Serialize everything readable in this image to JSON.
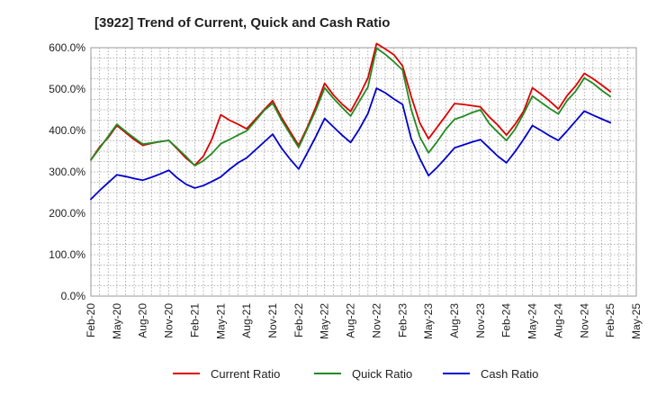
{
  "chart_data": {
    "type": "line",
    "title": "[3922]  Trend of Current, Quick and Cash Ratio",
    "xlabel": "",
    "ylabel": "",
    "ylim": [
      0,
      600
    ],
    "y_ticks": [
      "0.0%",
      "100.0%",
      "200.0%",
      "300.0%",
      "400.0%",
      "500.0%",
      "600.0%"
    ],
    "x_tick_labels": [
      "Feb-20",
      "May-20",
      "Aug-20",
      "Nov-20",
      "Feb-21",
      "May-21",
      "Aug-21",
      "Nov-21",
      "Feb-22",
      "May-22",
      "Aug-22",
      "Nov-22",
      "Feb-23",
      "May-23",
      "Aug-23",
      "Nov-23",
      "Feb-24",
      "May-24",
      "Aug-24",
      "Nov-24",
      "Feb-25",
      "May-25"
    ],
    "x": [
      "Feb-20",
      "Mar-20",
      "Apr-20",
      "May-20",
      "Jun-20",
      "Jul-20",
      "Aug-20",
      "Sep-20",
      "Oct-20",
      "Nov-20",
      "Dec-20",
      "Jan-21",
      "Feb-21",
      "Mar-21",
      "Apr-21",
      "May-21",
      "Jun-21",
      "Jul-21",
      "Aug-21",
      "Sep-21",
      "Oct-21",
      "Nov-21",
      "Dec-21",
      "Jan-22",
      "Feb-22",
      "Mar-22",
      "Apr-22",
      "May-22",
      "Jun-22",
      "Jul-22",
      "Aug-22",
      "Sep-22",
      "Oct-22",
      "Nov-22",
      "Dec-22",
      "Jan-23",
      "Feb-23",
      "Mar-23",
      "Apr-23",
      "May-23",
      "Jun-23",
      "Jul-23",
      "Aug-23",
      "Sep-23",
      "Oct-23",
      "Nov-23",
      "Dec-23",
      "Jan-24",
      "Feb-24",
      "Mar-24",
      "Apr-24",
      "May-24",
      "Jun-24",
      "Jul-24",
      "Aug-24",
      "Sep-24",
      "Oct-24",
      "Nov-24",
      "Dec-24",
      "Jan-25",
      "Feb-25"
    ],
    "grid": true,
    "legend_position": "bottom",
    "series": [
      {
        "name": "Current Ratio",
        "color": "#dd0000",
        "values": [
          329,
          360,
          383,
          412,
          395,
          378,
          364,
          369,
          373,
          376,
          355,
          333,
          316,
          338,
          380,
          438,
          425,
          415,
          404,
          427,
          450,
          472,
          432,
          398,
          364,
          408,
          458,
          514,
          486,
          464,
          446,
          484,
          527,
          610,
          597,
          583,
          556,
          482,
          418,
          380,
          408,
          436,
          465,
          463,
          460,
          457,
          433,
          413,
          389,
          415,
          447,
          503,
          488,
          471,
          452,
          484,
          508,
          538,
          525,
          510,
          494
        ]
      },
      {
        "name": "Quick Ratio",
        "color": "#228b22",
        "values": [
          329,
          357,
          386,
          415,
          398,
          382,
          367,
          370,
          373,
          376,
          357,
          337,
          315,
          327,
          345,
          368,
          378,
          389,
          399,
          423,
          448,
          466,
          426,
          392,
          359,
          404,
          450,
          503,
          478,
          456,
          435,
          470,
          505,
          599,
          584,
          566,
          546,
          451,
          384,
          346,
          373,
          403,
          427,
          434,
          443,
          450,
          417,
          396,
          376,
          403,
          441,
          483,
          468,
          453,
          440,
          472,
          495,
          527,
          514,
          497,
          482
        ]
      },
      {
        "name": "Cash Ratio",
        "color": "#0000cc",
        "values": [
          234,
          255,
          274,
          293,
          289,
          284,
          280,
          287,
          295,
          304,
          285,
          270,
          261,
          267,
          277,
          288,
          306,
          322,
          334,
          353,
          372,
          391,
          358,
          331,
          307,
          346,
          386,
          429,
          409,
          389,
          371,
          403,
          441,
          502,
          491,
          476,
          463,
          380,
          332,
          291,
          311,
          334,
          358,
          365,
          372,
          378,
          358,
          338,
          322,
          349,
          379,
          412,
          400,
          387,
          376,
          399,
          423,
          447,
          437,
          428,
          419
        ]
      }
    ]
  }
}
